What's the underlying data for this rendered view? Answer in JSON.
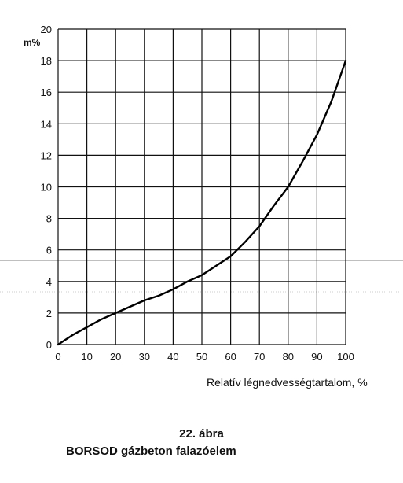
{
  "chart_data": {
    "type": "line",
    "ylabel": "m%",
    "xlabel": "Relatív légnedvességtartalom, %",
    "xlim": [
      0,
      100
    ],
    "ylim": [
      0,
      20
    ],
    "x_ticks": [
      0,
      10,
      20,
      30,
      40,
      50,
      60,
      70,
      80,
      90,
      100
    ],
    "y_ticks": [
      0,
      2,
      4,
      6,
      8,
      10,
      12,
      14,
      16,
      18,
      20
    ],
    "grid": true,
    "series": [
      {
        "x": [
          0,
          5,
          10,
          15,
          20,
          25,
          30,
          35,
          40,
          45,
          50,
          55,
          60,
          65,
          70,
          75,
          80,
          85,
          90,
          95,
          100
        ],
        "y": [
          0,
          0.6,
          1.1,
          1.6,
          2.0,
          2.4,
          2.8,
          3.1,
          3.5,
          4.0,
          4.4,
          5.0,
          5.6,
          6.5,
          7.5,
          8.8,
          10.0,
          11.6,
          13.3,
          15.4,
          18.0
        ]
      }
    ]
  },
  "caption": {
    "number": "22. ábra",
    "title": "BORSOD gázbeton falazóelem"
  }
}
